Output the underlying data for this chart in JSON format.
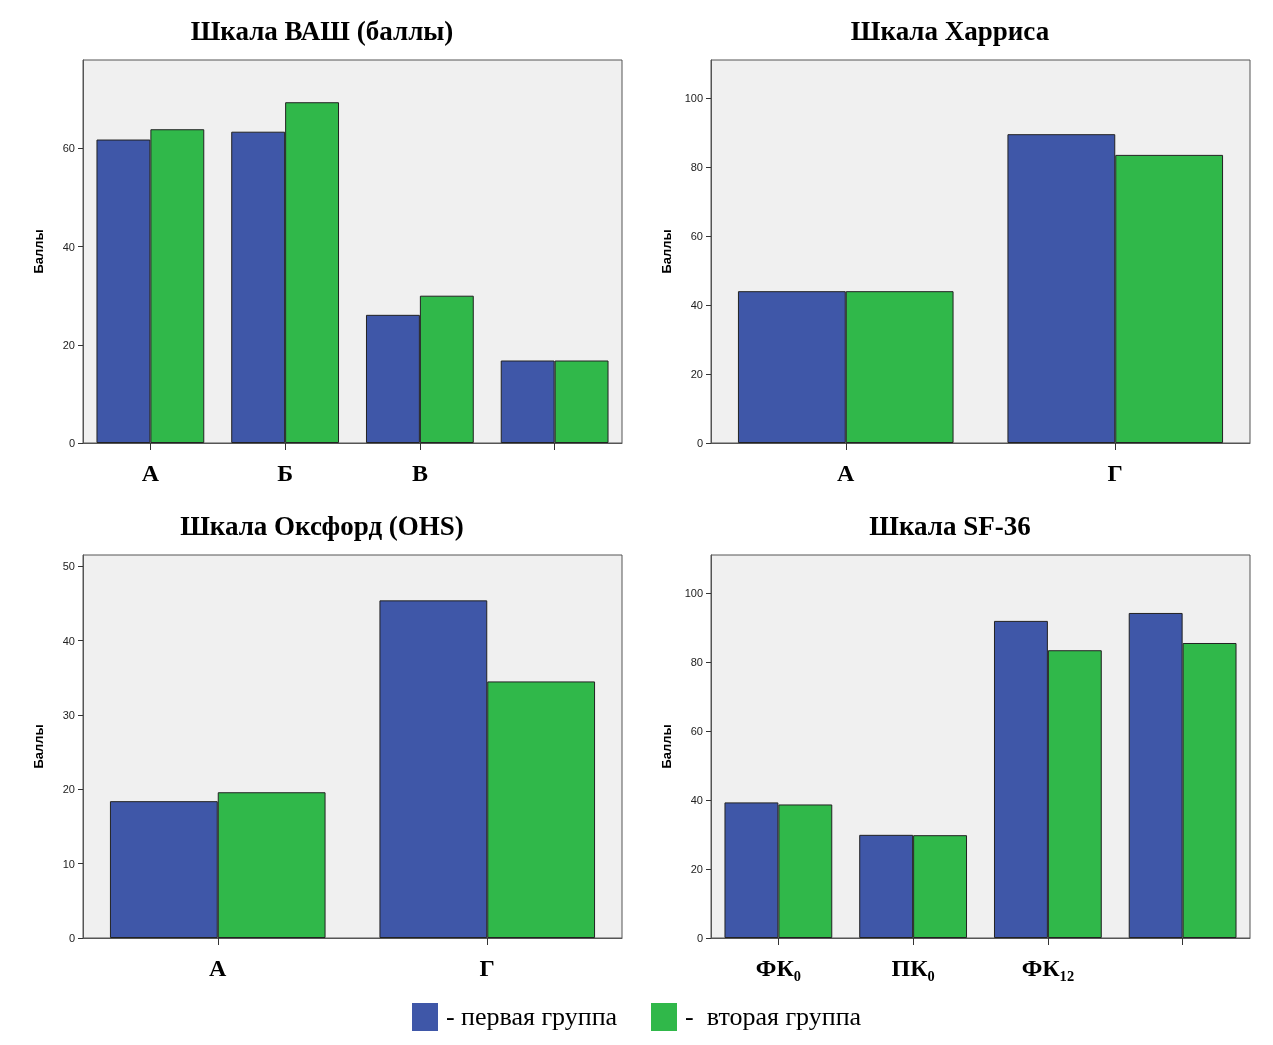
{
  "chart_data": [
    {
      "type": "bar",
      "title": "Шкала ВАШ (баллы)",
      "ylabel": "Баллы",
      "categories": [
        "А",
        "Б",
        "В",
        null
      ],
      "series": [
        {
          "name": "- первая группа",
          "color": "#3f57a8",
          "values": [
            61.8,
            63.4,
            26.1,
            16.8
          ]
        },
        {
          "name": "-  вторая группа",
          "color": "#30b84a",
          "values": [
            63.9,
            69.4,
            30.0,
            16.8
          ]
        }
      ],
      "ylim": [
        0,
        78
      ],
      "yticks": [
        0,
        20,
        40,
        60
      ],
      "grid": false,
      "legend": "bottom"
    },
    {
      "type": "bar",
      "title": "Шкала Харриса",
      "ylabel": "Баллы",
      "categories": [
        "А",
        "Г"
      ],
      "series": [
        {
          "color": "#3f57a8",
          "values": [
            44.0,
            89.5
          ]
        },
        {
          "color": "#30b84a",
          "values": [
            44.0,
            83.5
          ]
        }
      ],
      "ylim": [
        0,
        111
      ],
      "yticks": [
        0,
        20,
        40,
        60,
        80,
        100
      ],
      "grid": false
    },
    {
      "type": "bar",
      "title": "Шкала Оксфорд (OHS)",
      "ylabel": "Баллы",
      "categories": [
        "А",
        "Г"
      ],
      "series": [
        {
          "color": "#3f57a8",
          "values": [
            18.4,
            45.4
          ]
        },
        {
          "color": "#30b84a",
          "values": [
            19.6,
            34.5
          ]
        }
      ],
      "ylim": [
        0,
        51.5
      ],
      "yticks": [
        0,
        10,
        20,
        30,
        40,
        50
      ],
      "grid": false
    },
    {
      "type": "bar",
      "title": "Шкала SF-36",
      "ylabel": "Баллы",
      "categories": [
        "ФК₀",
        "ПК₀",
        "ФК₁₂",
        null
      ],
      "series": [
        {
          "color": "#3f57a8",
          "values": [
            39.3,
            29.9,
            91.9,
            94.2
          ]
        },
        {
          "color": "#30b84a",
          "values": [
            38.7,
            29.8,
            83.4,
            85.5
          ]
        }
      ],
      "ylim": [
        0,
        111
      ],
      "yticks": [
        0,
        20,
        40,
        60,
        80,
        100
      ],
      "grid": false
    }
  ]
}
